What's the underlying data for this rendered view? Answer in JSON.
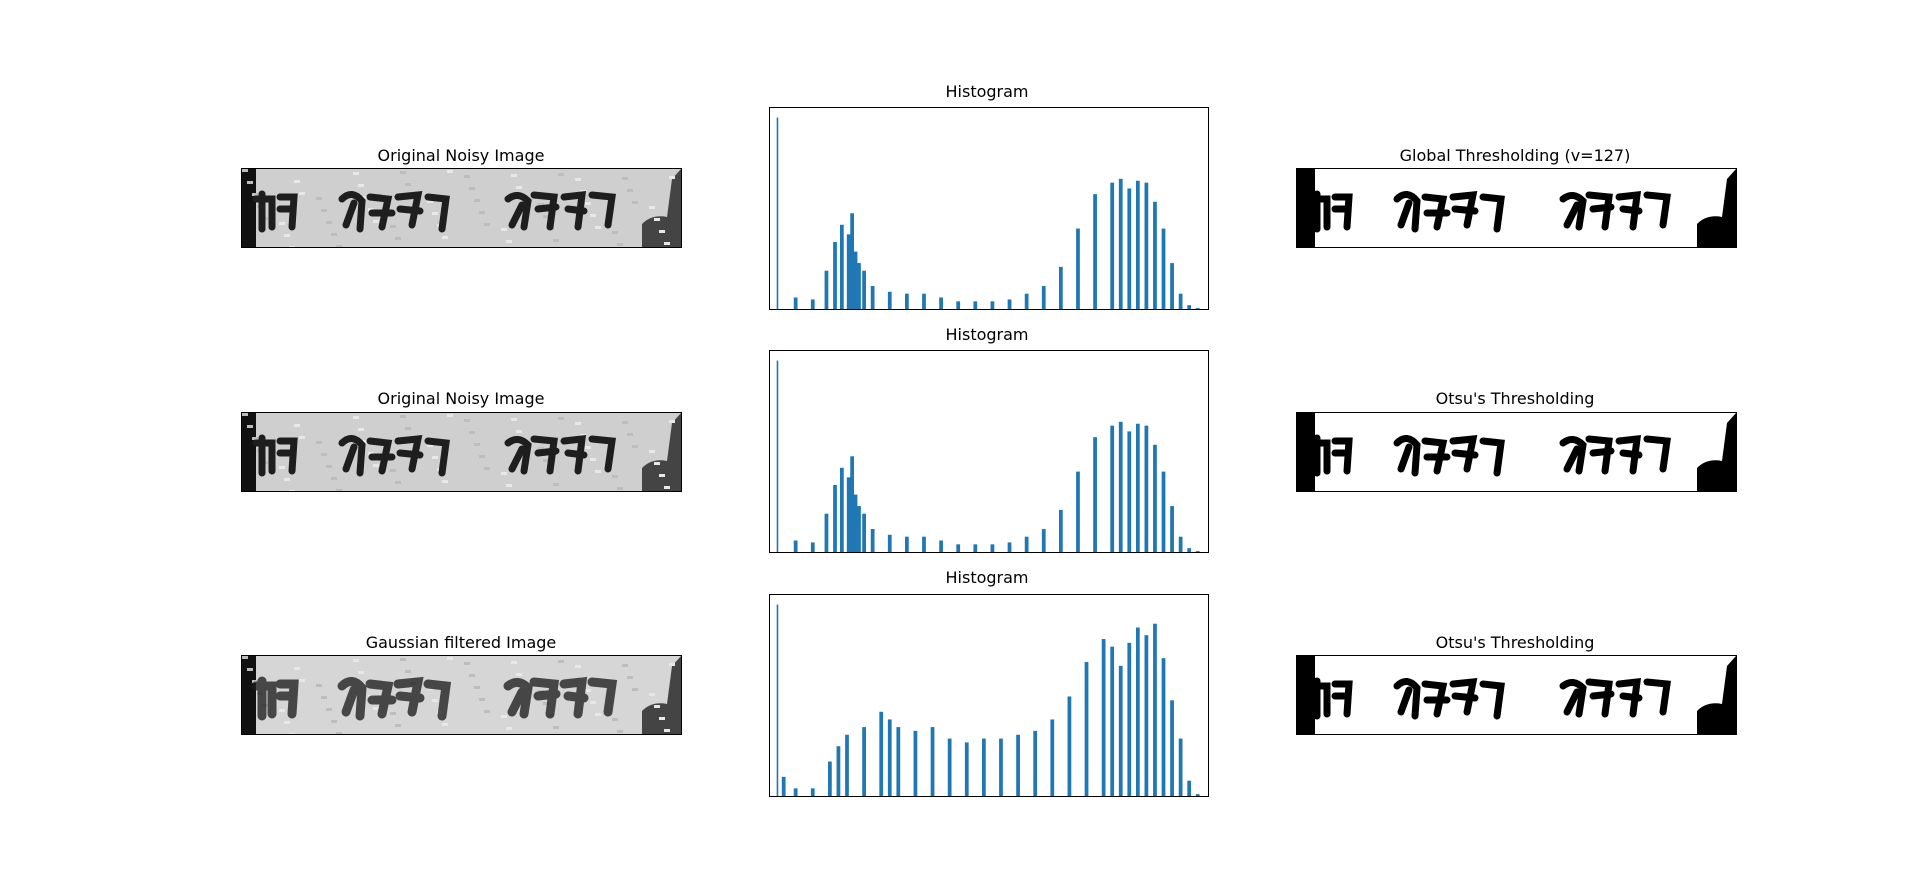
{
  "panels": {
    "row1": {
      "left_title": "Original Noisy Image",
      "hist_title": "Histogram",
      "right_title": "Global Thresholding (v=127)"
    },
    "row2": {
      "left_title": "Original Noisy Image",
      "hist_title": "Histogram",
      "right_title": "Otsu's Thresholding"
    },
    "row3": {
      "left_title": "Gaussian filtered Image",
      "hist_title": "Histogram",
      "right_title": "Otsu's Thresholding"
    }
  },
  "colors": {
    "bar": "#1f77b4",
    "ink": "#1a1a1a",
    "paper": "#d9d9d9"
  },
  "chart_data": [
    {
      "type": "bar",
      "title": "Histogram",
      "xlim": [
        0,
        256
      ],
      "ylim": [
        0,
        1.05
      ],
      "grid": false,
      "series": [
        {
          "x": [
            5,
            15,
            25,
            33,
            38,
            42,
            46,
            48,
            50,
            52,
            55,
            60,
            70,
            80,
            90,
            100,
            110,
            120,
            130,
            140,
            150,
            160,
            170,
            180,
            190,
            200,
            205,
            210,
            215,
            220,
            225,
            230,
            235,
            240,
            245,
            250
          ],
          "values": [
            1.0,
            0.06,
            0.05,
            0.2,
            0.35,
            0.44,
            0.39,
            0.5,
            0.3,
            0.24,
            0.2,
            0.12,
            0.09,
            0.08,
            0.08,
            0.06,
            0.04,
            0.04,
            0.04,
            0.05,
            0.08,
            0.12,
            0.22,
            0.42,
            0.6,
            0.66,
            0.68,
            0.63,
            0.67,
            0.66,
            0.56,
            0.42,
            0.24,
            0.08,
            0.02,
            0.005
          ]
        }
      ]
    },
    {
      "type": "bar",
      "title": "Histogram",
      "xlim": [
        0,
        256
      ],
      "ylim": [
        0,
        1.05
      ],
      "grid": false,
      "series": [
        {
          "x": [
            5,
            15,
            25,
            33,
            38,
            42,
            46,
            48,
            50,
            52,
            55,
            60,
            70,
            80,
            90,
            100,
            110,
            120,
            130,
            140,
            150,
            160,
            170,
            180,
            190,
            200,
            205,
            210,
            215,
            220,
            225,
            230,
            235,
            240,
            245,
            250
          ],
          "values": [
            1.0,
            0.06,
            0.05,
            0.2,
            0.35,
            0.44,
            0.39,
            0.5,
            0.3,
            0.24,
            0.2,
            0.12,
            0.09,
            0.08,
            0.08,
            0.06,
            0.04,
            0.04,
            0.04,
            0.05,
            0.08,
            0.12,
            0.22,
            0.42,
            0.6,
            0.66,
            0.68,
            0.63,
            0.67,
            0.66,
            0.56,
            0.42,
            0.24,
            0.08,
            0.02,
            0.005
          ]
        }
      ]
    },
    {
      "type": "bar",
      "title": "Histogram",
      "xlim": [
        0,
        256
      ],
      "ylim": [
        0,
        1.05
      ],
      "grid": false,
      "series": [
        {
          "x": [
            5,
            8,
            15,
            25,
            35,
            40,
            45,
            55,
            65,
            70,
            75,
            85,
            95,
            105,
            115,
            125,
            135,
            145,
            155,
            165,
            175,
            185,
            195,
            200,
            205,
            210,
            215,
            220,
            225,
            230,
            235,
            240,
            245,
            250
          ],
          "values": [
            1.0,
            0.1,
            0.04,
            0.04,
            0.18,
            0.26,
            0.32,
            0.36,
            0.44,
            0.4,
            0.36,
            0.34,
            0.36,
            0.3,
            0.28,
            0.3,
            0.3,
            0.32,
            0.34,
            0.4,
            0.52,
            0.7,
            0.82,
            0.78,
            0.68,
            0.8,
            0.88,
            0.84,
            0.9,
            0.72,
            0.5,
            0.3,
            0.08,
            0.01
          ]
        }
      ]
    }
  ]
}
